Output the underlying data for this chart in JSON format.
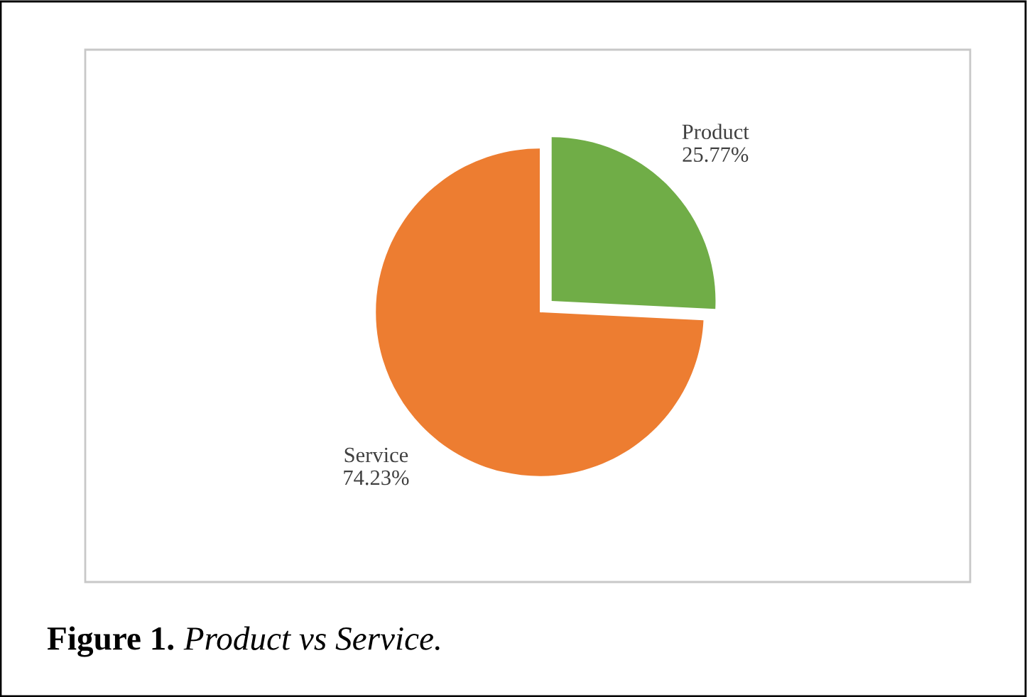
{
  "chart_data": {
    "type": "pie",
    "categories": [
      "Product",
      "Service"
    ],
    "values": [
      25.77,
      74.23
    ],
    "value_labels": [
      "25.77%",
      "74.23%"
    ],
    "colors": [
      "#70ad47",
      "#ed7d31"
    ],
    "annotations": [
      "Figure 1.",
      "Product vs Service."
    ]
  }
}
